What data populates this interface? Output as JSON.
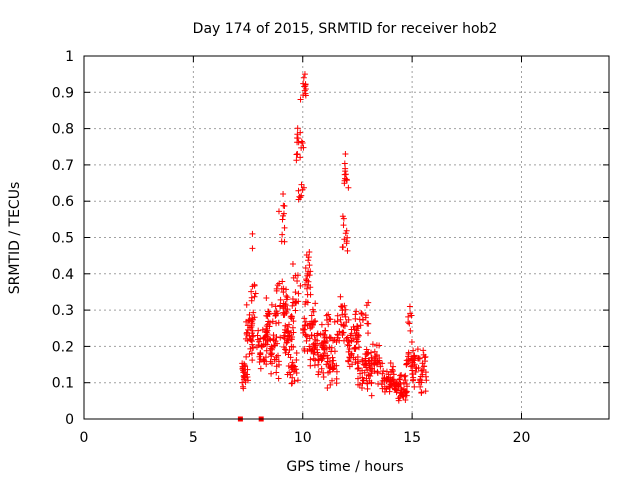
{
  "chart_data": {
    "type": "scatter",
    "title": "Day 174 of 2015, SRMTID for receiver hob2",
    "xlabel": "GPS time / hours",
    "ylabel": "SRMTID / TECUs",
    "xlim": [
      0,
      24
    ],
    "ylim": [
      0,
      1
    ],
    "x_ticks": [
      0,
      5,
      10,
      15,
      20
    ],
    "y_ticks": [
      0,
      0.1,
      0.2,
      0.3,
      0.4,
      0.5,
      0.6,
      0.7,
      0.8,
      0.9,
      1
    ],
    "x_tick_labels": [
      "0",
      "5",
      "10",
      "15",
      "20"
    ],
    "y_tick_labels": [
      "0",
      "0.1",
      "0.2",
      "0.3",
      "0.4",
      "0.5",
      "0.6",
      "0.7",
      "0.8",
      "0.9",
      "1"
    ],
    "grid": true,
    "marker": "+",
    "color": "#ff0000",
    "zero_markers": [
      {
        "x": 7.15,
        "y": 0
      },
      {
        "x": 8.1,
        "y": 0
      }
    ],
    "clusters": [
      {
        "x0": 7.2,
        "x1": 7.5,
        "y0": 0.06,
        "y1": 0.2,
        "n": 25
      },
      {
        "x0": 7.4,
        "x1": 7.8,
        "y0": 0.14,
        "y1": 0.32,
        "n": 35
      },
      {
        "x0": 7.6,
        "x1": 7.9,
        "y0": 0.25,
        "y1": 0.4,
        "n": 12
      },
      {
        "x0": 7.9,
        "x1": 8.4,
        "y0": 0.12,
        "y1": 0.28,
        "n": 35
      },
      {
        "x0": 8.3,
        "x1": 8.8,
        "y0": 0.18,
        "y1": 0.34,
        "n": 35
      },
      {
        "x0": 8.5,
        "x1": 9.0,
        "y0": 0.1,
        "y1": 0.24,
        "n": 25
      },
      {
        "x0": 8.8,
        "x1": 9.3,
        "y0": 0.22,
        "y1": 0.42,
        "n": 30
      },
      {
        "x0": 8.9,
        "x1": 9.2,
        "y0": 0.45,
        "y1": 0.62,
        "n": 10
      },
      {
        "x0": 9.1,
        "x1": 9.6,
        "y0": 0.16,
        "y1": 0.32,
        "n": 40
      },
      {
        "x0": 9.3,
        "x1": 9.8,
        "y0": 0.08,
        "y1": 0.2,
        "n": 25
      },
      {
        "x0": 9.5,
        "x1": 9.9,
        "y0": 0.28,
        "y1": 0.46,
        "n": 15
      },
      {
        "x0": 9.7,
        "x1": 10.05,
        "y0": 0.7,
        "y1": 0.82,
        "n": 15
      },
      {
        "x0": 9.8,
        "x1": 10.1,
        "y0": 0.55,
        "y1": 0.68,
        "n": 8
      },
      {
        "x0": 9.95,
        "x1": 10.15,
        "y0": 0.85,
        "y1": 0.95,
        "n": 10
      },
      {
        "x0": 10.0,
        "x1": 10.4,
        "y0": 0.3,
        "y1": 0.48,
        "n": 20
      },
      {
        "x0": 10.0,
        "x1": 10.6,
        "y0": 0.16,
        "y1": 0.34,
        "n": 40
      },
      {
        "x0": 10.3,
        "x1": 11.0,
        "y0": 0.1,
        "y1": 0.25,
        "n": 40
      },
      {
        "x0": 10.8,
        "x1": 11.6,
        "y0": 0.14,
        "y1": 0.3,
        "n": 45
      },
      {
        "x0": 11.1,
        "x1": 11.6,
        "y0": 0.08,
        "y1": 0.18,
        "n": 20
      },
      {
        "x0": 11.6,
        "x1": 12.0,
        "y0": 0.18,
        "y1": 0.36,
        "n": 25
      },
      {
        "x0": 11.8,
        "x1": 12.05,
        "y0": 0.4,
        "y1": 0.58,
        "n": 12
      },
      {
        "x0": 11.9,
        "x1": 12.1,
        "y0": 0.6,
        "y1": 0.73,
        "n": 10
      },
      {
        "x0": 12.0,
        "x1": 12.6,
        "y0": 0.12,
        "y1": 0.28,
        "n": 40
      },
      {
        "x0": 12.4,
        "x1": 13.0,
        "y0": 0.2,
        "y1": 0.34,
        "n": 25
      },
      {
        "x0": 12.5,
        "x1": 13.2,
        "y0": 0.06,
        "y1": 0.2,
        "n": 40
      },
      {
        "x0": 13.0,
        "x1": 13.6,
        "y0": 0.08,
        "y1": 0.22,
        "n": 40
      },
      {
        "x0": 13.6,
        "x1": 14.2,
        "y0": 0.06,
        "y1": 0.16,
        "n": 45
      },
      {
        "x0": 14.2,
        "x1": 14.8,
        "y0": 0.04,
        "y1": 0.14,
        "n": 45
      },
      {
        "x0": 14.7,
        "x1": 15.1,
        "y0": 0.12,
        "y1": 0.22,
        "n": 20
      },
      {
        "x0": 14.8,
        "x1": 15.0,
        "y0": 0.23,
        "y1": 0.31,
        "n": 6
      },
      {
        "x0": 15.0,
        "x1": 15.7,
        "y0": 0.05,
        "y1": 0.2,
        "n": 45
      }
    ],
    "outliers": [
      {
        "x": 7.7,
        "y": 0.51
      },
      {
        "x": 7.7,
        "y": 0.47
      },
      {
        "x": 10.1,
        "y": 0.95
      },
      {
        "x": 10.05,
        "y": 0.94
      },
      {
        "x": 9.9,
        "y": 0.88
      },
      {
        "x": 11.95,
        "y": 0.73
      },
      {
        "x": 12.0,
        "y": 0.66
      },
      {
        "x": 9.1,
        "y": 0.62
      },
      {
        "x": 10.3,
        "y": 0.46
      },
      {
        "x": 14.9,
        "y": 0.31
      }
    ]
  }
}
